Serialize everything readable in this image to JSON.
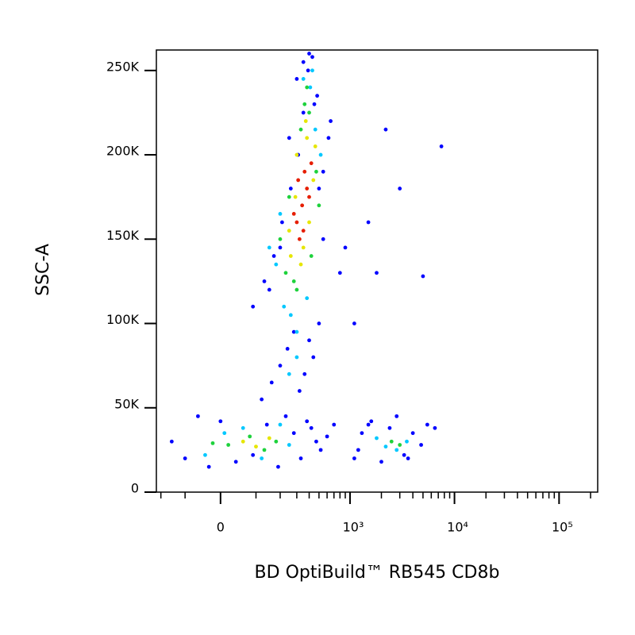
{
  "chart_data": {
    "type": "scatter",
    "x_label": "BD OptiBuild™ RB545 CD8b",
    "y_label": "SSC-A",
    "xscale": "biexponential",
    "xlim": [
      -224,
      234000
    ],
    "xticks": [
      0,
      {
        "value": 1000,
        "label": "10³"
      },
      {
        "value": 10000,
        "label": "10⁴"
      },
      {
        "value": 100000,
        "label": "10⁵"
      }
    ],
    "xminorticks": [
      -200,
      -100,
      100,
      200,
      300,
      400,
      500,
      600,
      700,
      800,
      900,
      2000,
      3000,
      4000,
      5000,
      6000,
      7000,
      8000,
      9000,
      20000,
      30000,
      40000,
      50000,
      60000,
      70000,
      80000,
      90000,
      200000
    ],
    "ylim": [
      0,
      262144
    ],
    "yticks": [
      0,
      {
        "value": 50000,
        "label": "50K"
      },
      {
        "value": 100000,
        "label": "100K"
      },
      {
        "value": 150000,
        "label": "150K"
      },
      {
        "value": 200000,
        "label": "200K"
      },
      {
        "value": 250000,
        "label": "250K"
      }
    ],
    "series": [
      {
        "color": "#0000ff",
        "x": [
          -150,
          -100,
          -60,
          -30,
          0,
          40,
          90,
          140,
          190,
          230,
          280,
          330,
          380,
          420,
          470,
          520,
          600,
          700,
          120,
          160,
          200,
          240,
          280,
          320,
          360,
          400,
          440,
          500,
          90,
          130,
          170,
          210,
          260,
          310,
          350,
          390,
          430,
          480,
          550,
          650,
          150,
          200,
          250,
          300,
          350,
          400,
          450,
          500,
          550,
          620,
          1100,
          1300,
          1600,
          2000,
          2400,
          2800,
          3300,
          4000,
          4800,
          5500,
          6500,
          1200,
          1500,
          3600,
          800,
          1100,
          1500,
          2200,
          3000,
          5000,
          7500,
          1800,
          900
        ],
        "values": [
          30000,
          20000,
          45000,
          15000,
          42000,
          18000,
          22000,
          40000,
          15000,
          45000,
          35000,
          20000,
          42000,
          38000,
          30000,
          25000,
          33000,
          40000,
          55000,
          65000,
          75000,
          85000,
          95000,
          60000,
          70000,
          90000,
          80000,
          100000,
          110000,
          125000,
          140000,
          160000,
          180000,
          200000,
          225000,
          250000,
          258000,
          235000,
          190000,
          220000,
          120000,
          145000,
          210000,
          245000,
          255000,
          260000,
          230000,
          180000,
          150000,
          210000,
          20000,
          35000,
          42000,
          18000,
          38000,
          45000,
          22000,
          35000,
          28000,
          40000,
          38000,
          25000,
          40000,
          20000,
          130000,
          100000,
          160000,
          215000,
          180000,
          128000,
          205000,
          130000,
          145000
        ]
      },
      {
        "color": "#00c8ff",
        "x": [
          180,
          220,
          260,
          350,
          410,
          460,
          520,
          300,
          380,
          430,
          200,
          150,
          -40,
          10,
          60,
          120,
          200,
          250,
          1800,
          2800,
          3500,
          2200,
          300,
          250
        ],
        "values": [
          135000,
          110000,
          105000,
          245000,
          240000,
          215000,
          200000,
          95000,
          115000,
          250000,
          165000,
          145000,
          22000,
          35000,
          38000,
          20000,
          40000,
          28000,
          32000,
          25000,
          30000,
          27000,
          80000,
          70000
        ]
      },
      {
        "color": "#1ed23c",
        "x": [
          230,
          280,
          330,
          400,
          470,
          500,
          360,
          250,
          300,
          420,
          200,
          380,
          20,
          80,
          130,
          180,
          -20,
          2500,
          3000
        ],
        "values": [
          130000,
          125000,
          215000,
          225000,
          190000,
          170000,
          230000,
          175000,
          120000,
          140000,
          150000,
          240000,
          28000,
          33000,
          25000,
          30000,
          29000,
          30000,
          28000
        ]
      },
      {
        "color": "#e6e600",
        "x": [
          260,
          300,
          380,
          440,
          330,
          400,
          350,
          290,
          250,
          460,
          370,
          60,
          100,
          150
        ],
        "values": [
          140000,
          200000,
          210000,
          185000,
          135000,
          160000,
          145000,
          175000,
          155000,
          205000,
          220000,
          30000,
          27000,
          32000
        ]
      },
      {
        "color": "#e61e00",
        "x": [
          300,
          340,
          380,
          320,
          360,
          400,
          280,
          350,
          420,
          310
        ],
        "values": [
          160000,
          170000,
          180000,
          150000,
          190000,
          175000,
          165000,
          155000,
          195000,
          185000
        ]
      }
    ]
  }
}
